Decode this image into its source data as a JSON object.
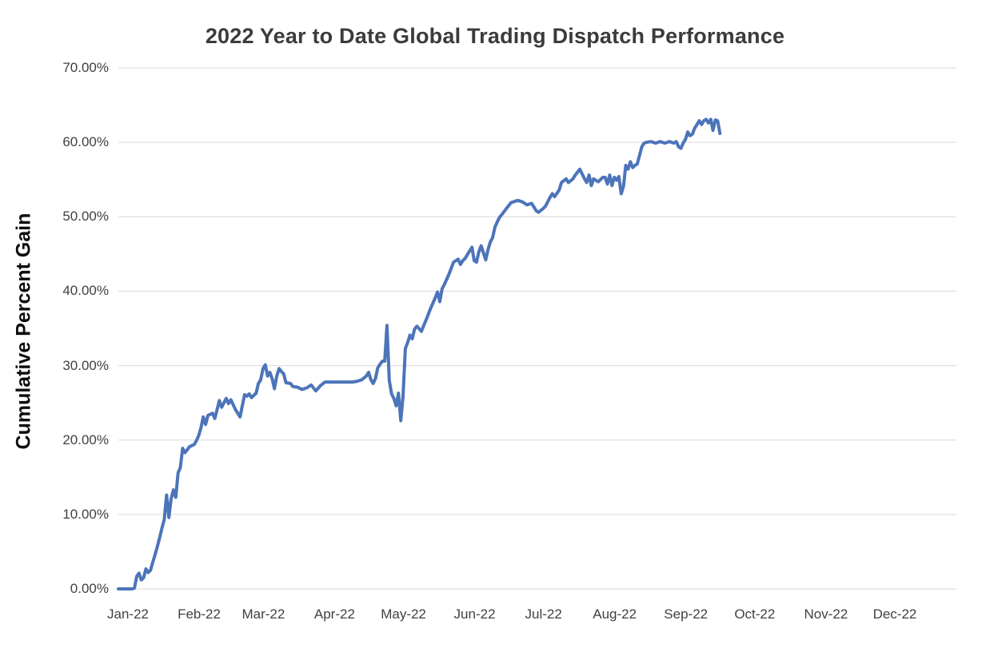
{
  "title": "2022 Year to Date Global Trading Dispatch Performance",
  "y_axis_title": "Cumulative Percent Gain",
  "colors": {
    "line": "#4C74B9",
    "gridline": "#D9D9D9",
    "title_text": "#3B3B3B",
    "tick_text": "#404040",
    "background": "#FFFFFF"
  },
  "chart_data": {
    "type": "line",
    "title": "2022 Year to Date Global Trading Dispatch Performance",
    "xlabel": "",
    "ylabel": "Cumulative Percent Gain",
    "ylim": [
      0,
      70
    ],
    "y_tick_values": [
      0,
      10,
      20,
      30,
      40,
      50,
      60,
      70
    ],
    "y_tick_labels": [
      "0.00%",
      "10.00%",
      "20.00%",
      "30.00%",
      "40.00%",
      "50.00%",
      "60.00%",
      "70.00%"
    ],
    "x_tick_labels": [
      "Jan-22",
      "Feb-22",
      "Mar-22",
      "Apr-22",
      "May-22",
      "Jun-22",
      "Jul-22",
      "Aug-22",
      "Sep-22",
      "Oct-22",
      "Nov-22",
      "Dec-22"
    ],
    "x_tick_days": [
      0,
      31,
      59,
      90,
      120,
      151,
      181,
      212,
      243,
      273,
      304,
      334
    ],
    "x_range_days": [
      0,
      365
    ],
    "grid": "horizontal",
    "legend": "none",
    "series": [
      {
        "name": "Cumulative Percent Gain",
        "units": "percent",
        "points": [
          [
            0,
            0.0
          ],
          [
            3,
            0.0
          ],
          [
            6,
            0.0
          ],
          [
            7,
            0.1
          ],
          [
            8,
            1.7
          ],
          [
            9,
            2.1
          ],
          [
            10,
            1.2
          ],
          [
            11,
            1.5
          ],
          [
            12,
            2.7
          ],
          [
            13,
            2.2
          ],
          [
            14,
            2.5
          ],
          [
            15,
            3.6
          ],
          [
            16,
            4.6
          ],
          [
            17,
            5.7
          ],
          [
            18,
            6.9
          ],
          [
            19,
            8.2
          ],
          [
            20,
            9.3
          ],
          [
            21,
            12.6
          ],
          [
            22,
            9.6
          ],
          [
            23,
            12.1
          ],
          [
            24,
            13.3
          ],
          [
            25,
            12.3
          ],
          [
            26,
            15.6
          ],
          [
            27,
            16.3
          ],
          [
            28,
            18.9
          ],
          [
            29,
            18.3
          ],
          [
            31,
            19.1
          ],
          [
            33,
            19.4
          ],
          [
            34,
            19.9
          ],
          [
            35,
            20.6
          ],
          [
            36,
            21.7
          ],
          [
            37,
            23.1
          ],
          [
            38,
            22.1
          ],
          [
            39,
            23.3
          ],
          [
            41,
            23.6
          ],
          [
            42,
            22.9
          ],
          [
            43,
            24.1
          ],
          [
            44,
            25.3
          ],
          [
            45,
            24.4
          ],
          [
            46,
            25.0
          ],
          [
            47,
            25.6
          ],
          [
            48,
            24.9
          ],
          [
            49,
            25.4
          ],
          [
            51,
            24.1
          ],
          [
            53,
            23.1
          ],
          [
            54,
            24.6
          ],
          [
            55,
            26.1
          ],
          [
            56,
            25.9
          ],
          [
            57,
            26.2
          ],
          [
            58,
            25.7
          ],
          [
            60,
            26.3
          ],
          [
            61,
            27.6
          ],
          [
            62,
            28.1
          ],
          [
            63,
            29.6
          ],
          [
            64,
            30.1
          ],
          [
            65,
            28.6
          ],
          [
            66,
            29.1
          ],
          [
            67,
            28.2
          ],
          [
            68,
            26.9
          ],
          [
            69,
            28.6
          ],
          [
            70,
            29.6
          ],
          [
            71,
            29.2
          ],
          [
            72,
            28.9
          ],
          [
            73,
            27.7
          ],
          [
            75,
            27.6
          ],
          [
            76,
            27.2
          ],
          [
            78,
            27.1
          ],
          [
            80,
            26.8
          ],
          [
            82,
            27.0
          ],
          [
            84,
            27.4
          ],
          [
            86,
            26.6
          ],
          [
            88,
            27.3
          ],
          [
            90,
            27.8
          ],
          [
            93,
            27.8
          ],
          [
            96,
            27.8
          ],
          [
            99,
            27.8
          ],
          [
            102,
            27.8
          ],
          [
            104,
            27.9
          ],
          [
            106,
            28.1
          ],
          [
            108,
            28.6
          ],
          [
            109,
            29.1
          ],
          [
            110,
            28.1
          ],
          [
            111,
            27.6
          ],
          [
            112,
            28.3
          ],
          [
            113,
            29.7
          ],
          [
            114,
            30.2
          ],
          [
            115,
            30.6
          ],
          [
            116,
            30.6
          ],
          [
            117,
            35.4
          ],
          [
            118,
            28.0
          ],
          [
            119,
            26.2
          ],
          [
            120,
            25.6
          ],
          [
            121,
            24.6
          ],
          [
            122,
            26.3
          ],
          [
            123,
            22.6
          ],
          [
            124,
            25.9
          ],
          [
            125,
            32.3
          ],
          [
            126,
            33.1
          ],
          [
            127,
            34.1
          ],
          [
            128,
            33.6
          ],
          [
            129,
            34.9
          ],
          [
            130,
            35.3
          ],
          [
            132,
            34.6
          ],
          [
            133,
            35.4
          ],
          [
            134,
            36.1
          ],
          [
            135,
            36.9
          ],
          [
            136,
            37.7
          ],
          [
            137,
            38.4
          ],
          [
            138,
            39.1
          ],
          [
            139,
            39.9
          ],
          [
            140,
            38.6
          ],
          [
            141,
            40.3
          ],
          [
            142,
            40.9
          ],
          [
            143,
            41.6
          ],
          [
            144,
            42.3
          ],
          [
            145,
            43.1
          ],
          [
            146,
            43.9
          ],
          [
            148,
            44.3
          ],
          [
            149,
            43.6
          ],
          [
            150,
            44.1
          ],
          [
            151,
            44.4
          ],
          [
            152,
            44.9
          ],
          [
            153,
            45.4
          ],
          [
            154,
            45.9
          ],
          [
            155,
            44.1
          ],
          [
            156,
            43.9
          ],
          [
            157,
            45.3
          ],
          [
            158,
            46.1
          ],
          [
            160,
            44.2
          ],
          [
            161,
            45.6
          ],
          [
            162,
            46.6
          ],
          [
            163,
            47.2
          ],
          [
            164,
            48.6
          ],
          [
            165,
            49.3
          ],
          [
            166,
            49.9
          ],
          [
            167,
            50.3
          ],
          [
            168,
            50.7
          ],
          [
            169,
            51.1
          ],
          [
            171,
            51.9
          ],
          [
            173,
            52.1
          ],
          [
            174,
            52.2
          ],
          [
            176,
            52.0
          ],
          [
            178,
            51.6
          ],
          [
            180,
            51.8
          ],
          [
            182,
            50.8
          ],
          [
            183,
            50.6
          ],
          [
            185,
            51.1
          ],
          [
            186,
            51.4
          ],
          [
            188,
            52.6
          ],
          [
            189,
            53.1
          ],
          [
            190,
            52.7
          ],
          [
            192,
            53.6
          ],
          [
            193,
            54.6
          ],
          [
            195,
            55.1
          ],
          [
            196,
            54.6
          ],
          [
            198,
            55.1
          ],
          [
            199,
            55.6
          ],
          [
            201,
            56.4
          ],
          [
            203,
            55.1
          ],
          [
            204,
            54.6
          ],
          [
            205,
            55.6
          ],
          [
            206,
            54.2
          ],
          [
            207,
            55.1
          ],
          [
            209,
            54.7
          ],
          [
            211,
            55.3
          ],
          [
            212,
            55.3
          ],
          [
            213,
            54.4
          ],
          [
            214,
            55.6
          ],
          [
            215,
            54.2
          ],
          [
            216,
            55.3
          ],
          [
            217,
            54.9
          ],
          [
            218,
            55.4
          ],
          [
            219,
            53.1
          ],
          [
            220,
            54.1
          ],
          [
            221,
            56.9
          ],
          [
            222,
            56.4
          ],
          [
            223,
            57.4
          ],
          [
            224,
            56.6
          ],
          [
            225,
            56.9
          ],
          [
            226,
            57.1
          ],
          [
            228,
            59.4
          ],
          [
            229,
            59.9
          ],
          [
            230,
            60.0
          ],
          [
            232,
            60.1
          ],
          [
            234,
            59.9
          ],
          [
            236,
            60.1
          ],
          [
            238,
            59.9
          ],
          [
            240,
            60.1
          ],
          [
            242,
            59.9
          ],
          [
            243,
            60.1
          ],
          [
            244,
            59.4
          ],
          [
            245,
            59.2
          ],
          [
            246,
            59.9
          ],
          [
            247,
            60.4
          ],
          [
            248,
            61.4
          ],
          [
            249,
            60.9
          ],
          [
            250,
            61.1
          ],
          [
            251,
            61.9
          ],
          [
            252,
            62.4
          ],
          [
            253,
            62.9
          ],
          [
            254,
            62.4
          ],
          [
            255,
            62.9
          ],
          [
            256,
            63.1
          ],
          [
            257,
            62.6
          ],
          [
            258,
            63.1
          ],
          [
            259,
            61.6
          ],
          [
            260,
            63.0
          ],
          [
            261,
            62.9
          ],
          [
            262,
            61.2
          ]
        ]
      }
    ]
  }
}
